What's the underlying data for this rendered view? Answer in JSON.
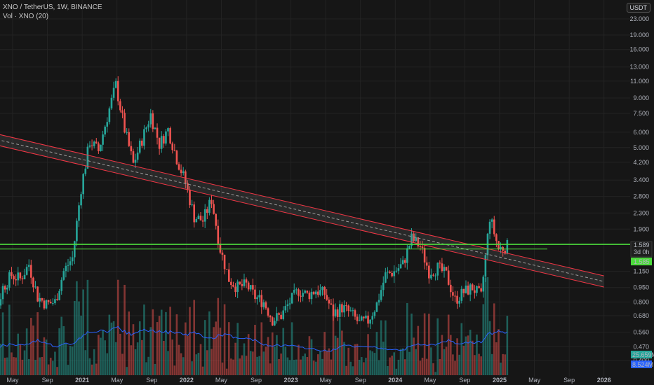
{
  "legend": {
    "title": "XNO / TetherUS, 1W, BINANCE",
    "volume": "Vol · XNO (20)"
  },
  "currency": "USDT",
  "colors": {
    "background": "#161616",
    "grid": "#232323",
    "up": "#26a69a",
    "down": "#ef5350",
    "trend_line": "#f23645",
    "horizontal_line": "#4cdb3c",
    "volume_ma": "#2962ff"
  },
  "chart_data": {
    "type": "candlestick",
    "title": "XNO / TetherUS, 1W, BINANCE",
    "y_scale": "log",
    "y_ticks": [
      "23.000",
      "19.000",
      "16.000",
      "13.000",
      "11.000",
      "9.000",
      "7.500",
      "6.000",
      "5.000",
      "4.200",
      "3.400",
      "2.800",
      "2.300",
      "1.900",
      "1.150",
      "0.950",
      "0.800",
      "0.680",
      "0.560",
      "0.470",
      "0.400"
    ],
    "x_ticks": [
      "May",
      "Sep",
      "2021",
      "May",
      "Sep",
      "2022",
      "May",
      "Sep",
      "2023",
      "May",
      "Sep",
      "2024",
      "May",
      "Sep",
      "2025",
      "May",
      "Sep",
      "2026"
    ],
    "ylim": [
      0.33,
      26.5
    ],
    "price_labels": {
      "last_price": "1.589",
      "countdown": "3d 0h",
      "horizontal_level": "1.585"
    },
    "volume_labels": [
      "25.659M",
      "8.524M"
    ],
    "trend_channel": {
      "start": {
        "date": "2020-01",
        "price": 5.8
      },
      "end": {
        "date": "2026-01",
        "price": 1.02
      }
    },
    "horizontal_levels": [
      1.585,
      1.5
    ],
    "price_path": [
      [
        "2020-01",
        0.46
      ],
      [
        "2020-03",
        0.65
      ],
      [
        "2020-04",
        0.95
      ],
      [
        "2020-05",
        1.1
      ],
      [
        "2020-06",
        1.05
      ],
      [
        "2020-07",
        1.25
      ],
      [
        "2020-08",
        0.85
      ],
      [
        "2020-09",
        0.78
      ],
      [
        "2020-10",
        0.8
      ],
      [
        "2020-11",
        1.15
      ],
      [
        "2020-12",
        1.35
      ],
      [
        "2021-01",
        3.1
      ],
      [
        "2021-02",
        5.4
      ],
      [
        "2021-03",
        4.8
      ],
      [
        "2021-04",
        7.2
      ],
      [
        "2021-05",
        10.5
      ],
      [
        "2021-06",
        6.2
      ],
      [
        "2021-07",
        4.1
      ],
      [
        "2021-08",
        5.5
      ],
      [
        "2021-09",
        7.4
      ],
      [
        "2021-10",
        5.2
      ],
      [
        "2021-11",
        6.2
      ],
      [
        "2021-12",
        4.4
      ],
      [
        "2022-01",
        3.3
      ],
      [
        "2022-02",
        2.2
      ],
      [
        "2022-03",
        2.1
      ],
      [
        "2022-04",
        2.7
      ],
      [
        "2022-05",
        1.5
      ],
      [
        "2022-06",
        1.05
      ],
      [
        "2022-07",
        0.95
      ],
      [
        "2022-08",
        0.98
      ],
      [
        "2022-09",
        0.85
      ],
      [
        "2022-10",
        0.8
      ],
      [
        "2022-11",
        0.65
      ],
      [
        "2022-12",
        0.68
      ],
      [
        "2023-01",
        0.8
      ],
      [
        "2023-02",
        0.92
      ],
      [
        "2023-03",
        0.87
      ],
      [
        "2023-04",
        0.92
      ],
      [
        "2023-05",
        0.88
      ],
      [
        "2023-06",
        0.7
      ],
      [
        "2023-07",
        0.75
      ],
      [
        "2023-08",
        0.7
      ],
      [
        "2023-09",
        0.62
      ],
      [
        "2023-10",
        0.64
      ],
      [
        "2023-11",
        0.78
      ],
      [
        "2023-12",
        1.1
      ],
      [
        "2024-01",
        1.15
      ],
      [
        "2024-02",
        1.25
      ],
      [
        "2024-03",
        1.7
      ],
      [
        "2024-04",
        1.55
      ],
      [
        "2024-05",
        1.15
      ],
      [
        "2024-06",
        1.2
      ],
      [
        "2024-07",
        1.1
      ],
      [
        "2024-08",
        0.82
      ],
      [
        "2024-09",
        0.9
      ],
      [
        "2024-10",
        0.95
      ],
      [
        "2024-11",
        0.85
      ],
      [
        "2024-12",
        2.2
      ],
      [
        "2025-01",
        1.5
      ],
      [
        "2025-02",
        1.55
      ]
    ]
  }
}
